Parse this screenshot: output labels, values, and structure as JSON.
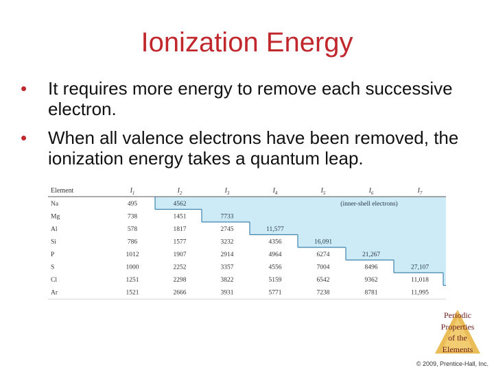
{
  "title": "Ionization Energy",
  "bullets": [
    "It requires more energy to remove each successive electron.",
    "When all valence electrons have been removed, the ionization energy takes a quantum leap."
  ],
  "table": {
    "header_label": "Element",
    "columns": [
      "I",
      "I",
      "I",
      "I",
      "I",
      "I",
      "I"
    ],
    "subscripts": [
      "1",
      "2",
      "3",
      "4",
      "5",
      "6",
      "7"
    ],
    "note": "(inner-shell electrons)",
    "rows": [
      {
        "element": "Na",
        "values": [
          "495",
          "4562",
          "",
          "",
          "",
          "",
          ""
        ],
        "split": 1
      },
      {
        "element": "Mg",
        "values": [
          "738",
          "1451",
          "7733",
          "",
          "",
          "",
          ""
        ],
        "split": 2
      },
      {
        "element": "Al",
        "values": [
          "578",
          "1817",
          "2745",
          "11,577",
          "",
          "",
          ""
        ],
        "split": 3
      },
      {
        "element": "Si",
        "values": [
          "786",
          "1577",
          "3232",
          "4356",
          "16,091",
          "",
          ""
        ],
        "split": 4
      },
      {
        "element": "P",
        "values": [
          "1012",
          "1907",
          "2914",
          "4964",
          "6274",
          "21,267",
          ""
        ],
        "split": 5
      },
      {
        "element": "S",
        "values": [
          "1000",
          "2252",
          "3357",
          "4556",
          "7004",
          "8496",
          "27,107"
        ],
        "split": 6
      },
      {
        "element": "Cl",
        "values": [
          "1251",
          "2298",
          "3822",
          "5159",
          "6542",
          "9362",
          "11,018"
        ],
        "split": 7
      },
      {
        "element": "Ar",
        "values": [
          "1521",
          "2666",
          "3931",
          "5771",
          "7238",
          "8781",
          "11,995"
        ],
        "split": 8
      }
    ]
  },
  "badge": {
    "lines": [
      "Periodic",
      "Properties",
      "of the",
      "Elements"
    ]
  },
  "copyright": "© 2009, Prentice-Hall, Inc.",
  "colors": {
    "title": "#c0282e",
    "shade": "#cdeaf7",
    "staircase": "#3d83b0"
  }
}
